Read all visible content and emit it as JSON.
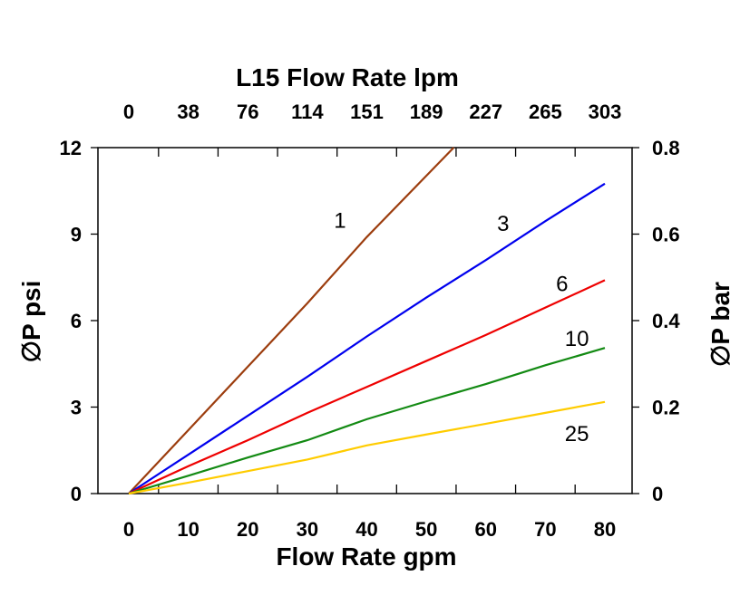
{
  "chart_data": {
    "type": "line",
    "title": "L15 Flow Rate lpm",
    "xlabel": "Flow Rate gpm",
    "ylabel": "∅P psi",
    "y2label": "∅P bar",
    "xlim": [
      -5,
      85
    ],
    "ylim": [
      0,
      12
    ],
    "y2lim": [
      0,
      0.8
    ],
    "xticks": [
      0,
      10,
      20,
      30,
      40,
      50,
      60,
      70,
      80
    ],
    "yticks": [
      0,
      3,
      6,
      9,
      12
    ],
    "y2ticks": [
      "0",
      "0.2",
      "0.4",
      "0.6",
      "0.8"
    ],
    "x2ticks": [
      "0",
      "38",
      "76",
      "114",
      "151",
      "189",
      "227",
      "265",
      "303"
    ],
    "grid": false,
    "series": [
      {
        "name": "1",
        "color": "#9c3d0e",
        "x": [
          0,
          10,
          20,
          30,
          40,
          54.6
        ],
        "y": [
          0,
          2.2,
          4.4,
          6.6,
          8.9,
          12
        ],
        "label_at": [
          35.5,
          9.5
        ]
      },
      {
        "name": "3",
        "color": "#0000ee",
        "x": [
          0,
          10,
          20,
          30,
          40,
          50,
          60,
          70,
          80
        ],
        "y": [
          0,
          1.35,
          2.7,
          4.05,
          5.45,
          6.8,
          8.1,
          9.45,
          10.75
        ],
        "label_at": [
          62.9,
          9.4
        ]
      },
      {
        "name": "6",
        "color": "#ee0000",
        "x": [
          0,
          10,
          20,
          30,
          40,
          50,
          60,
          70,
          80
        ],
        "y": [
          0,
          0.95,
          1.85,
          2.8,
          3.7,
          4.6,
          5.5,
          6.45,
          7.4
        ],
        "label_at": [
          72.8,
          7.3
        ]
      },
      {
        "name": "10",
        "color": "#138a13",
        "x": [
          0,
          10,
          20,
          30,
          40,
          50,
          60,
          70,
          80
        ],
        "y": [
          0,
          0.62,
          1.25,
          1.85,
          2.58,
          3.2,
          3.8,
          4.45,
          5.05
        ],
        "label_at": [
          75.3,
          5.4
        ]
      },
      {
        "name": "25",
        "color": "#ffcc00",
        "x": [
          0,
          10,
          20,
          30,
          40,
          50,
          60,
          70,
          80
        ],
        "y": [
          0,
          0.38,
          0.78,
          1.18,
          1.67,
          2.05,
          2.42,
          2.8,
          3.18
        ],
        "label_at": [
          75.3,
          2.1
        ]
      }
    ]
  }
}
